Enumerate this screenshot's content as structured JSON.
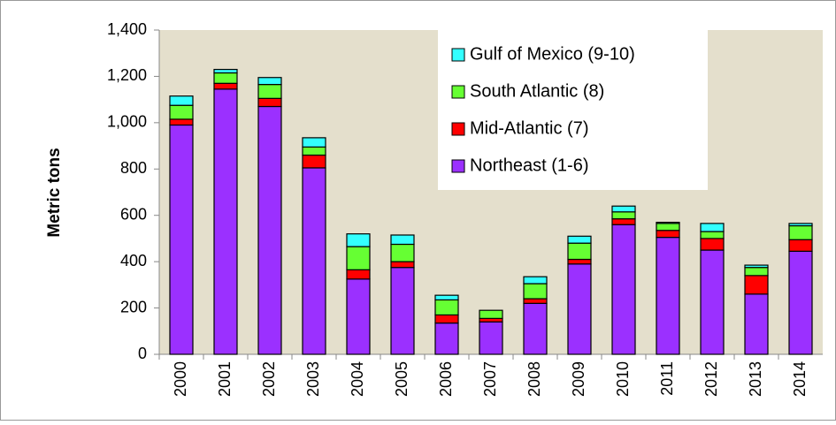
{
  "chart_data": {
    "type": "stacked_bar",
    "y_label": "Metric tons",
    "categories": [
      "2000",
      "2001",
      "2002",
      "2003",
      "2004",
      "2005",
      "2006",
      "2007",
      "2008",
      "2009",
      "2010",
      "2011",
      "2012",
      "2013",
      "2014"
    ],
    "series": [
      {
        "name": "Northeast (1-6)",
        "color": "#9b30ff",
        "values": [
          990,
          1145,
          1070,
          805,
          325,
          375,
          135,
          140,
          220,
          390,
          560,
          505,
          450,
          260,
          445
        ]
      },
      {
        "name": "Mid-Atlantic (7)",
        "color": "#ff0000",
        "values": [
          25,
          25,
          35,
          55,
          40,
          25,
          35,
          15,
          20,
          20,
          25,
          30,
          50,
          80,
          50
        ]
      },
      {
        "name": "South Atlantic (8)",
        "color": "#66ff33",
        "values": [
          60,
          45,
          60,
          35,
          100,
          75,
          65,
          35,
          65,
          70,
          30,
          30,
          30,
          35,
          60
        ]
      },
      {
        "name": "Gulf of Mexico (9-10)",
        "color": "#33ffff",
        "values": [
          40,
          15,
          30,
          40,
          55,
          40,
          20,
          0,
          30,
          30,
          25,
          5,
          35,
          10,
          10
        ]
      }
    ],
    "ylim": [
      0,
      1400
    ],
    "yticks": [
      0,
      200,
      400,
      600,
      800,
      {
        "value": 1000,
        "label": "1,000"
      },
      {
        "value": 1200,
        "label": "1,200"
      },
      {
        "value": 1400,
        "label": "1,400"
      }
    ],
    "grid": false,
    "legend_position": "top-right"
  }
}
